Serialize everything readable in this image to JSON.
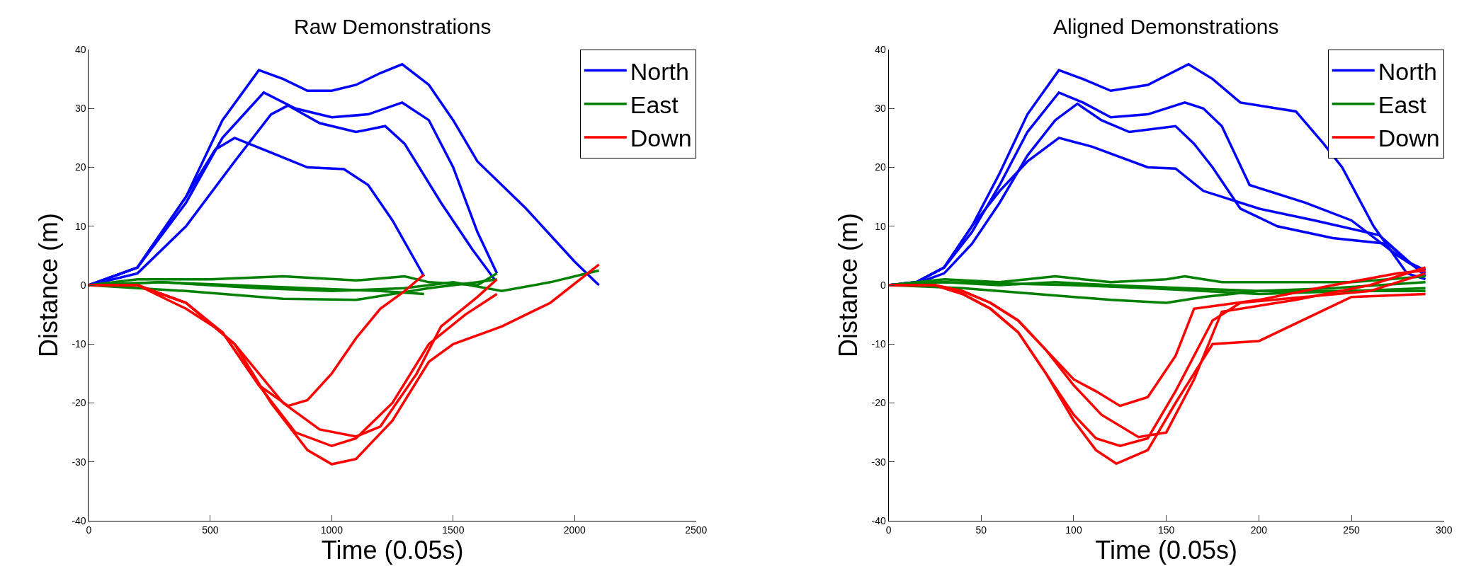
{
  "chart_data": [
    {
      "type": "line",
      "title": "Raw Demonstrations",
      "xlabel": "Time (0.05s)",
      "ylabel": "Distance (m)",
      "xlim": [
        0,
        2500
      ],
      "ylim": [
        -40,
        40
      ],
      "xticks": [
        0,
        500,
        1000,
        1500,
        2000,
        2500
      ],
      "yticks": [
        -40,
        -30,
        -20,
        -10,
        0,
        10,
        20,
        30,
        40
      ],
      "grid": false,
      "legend": "top right",
      "series": [
        {
          "name": "North",
          "color": "#0000ff",
          "x": [
            0,
            200,
            400,
            550,
            700,
            800,
            900,
            1000,
            1100,
            1200,
            1290,
            1400,
            1500,
            1600,
            1800,
            2000,
            2100
          ],
          "values": [
            0,
            3,
            15,
            28,
            36.5,
            35,
            33,
            33,
            34,
            36,
            37.5,
            34,
            28,
            21,
            13,
            4,
            0
          ]
        },
        {
          "color": "#0000ff",
          "x": [
            0,
            200,
            400,
            550,
            720,
            850,
            1000,
            1150,
            1290,
            1400,
            1500,
            1600,
            1680
          ],
          "values": [
            0,
            3,
            14,
            25,
            32.7,
            30,
            28.5,
            29,
            31,
            28,
            20,
            9,
            2
          ]
        },
        {
          "color": "#0000ff",
          "x": [
            0,
            200,
            400,
            600,
            750,
            820,
            950,
            1100,
            1220,
            1300,
            1450,
            1580,
            1670
          ],
          "values": [
            0,
            2,
            10,
            21,
            29,
            30.5,
            27.5,
            26,
            27,
            24,
            14,
            6,
            1
          ]
        },
        {
          "color": "#0000ff",
          "x": [
            0,
            200,
            400,
            520,
            600,
            750,
            900,
            1050,
            1150,
            1250,
            1380
          ],
          "values": [
            0,
            3,
            15,
            23,
            25,
            22.5,
            20,
            19.7,
            17,
            11,
            1.5
          ]
        },
        {
          "name": "East",
          "color": "#008000",
          "x": [
            0,
            200,
            500,
            800,
            1100,
            1300,
            1400,
            1600,
            1680
          ],
          "values": [
            0,
            1,
            1,
            1.5,
            0.8,
            1.5,
            0.5,
            0,
            2
          ]
        },
        {
          "color": "#008000",
          "x": [
            0,
            300,
            600,
            900,
            1200,
            1380
          ],
          "values": [
            0,
            0.5,
            0,
            -0.5,
            -1,
            -1.5
          ]
        },
        {
          "color": "#008000",
          "x": [
            0,
            400,
            800,
            1100,
            1400,
            1600,
            1680
          ],
          "values": [
            0,
            -1,
            -2.3,
            -2.5,
            -0.5,
            0.5,
            1
          ]
        },
        {
          "color": "#008000",
          "x": [
            0,
            300,
            700,
            1000,
            1300,
            1500,
            1700,
            1900,
            2100
          ],
          "values": [
            0,
            0.5,
            -0.5,
            -1,
            -0.5,
            0.5,
            -1,
            0.5,
            2.5
          ]
        },
        {
          "name": "Down",
          "color": "#ff0000",
          "x": [
            0,
            200,
            400,
            550,
            700,
            820,
            900,
            1000,
            1100,
            1200,
            1300,
            1380
          ],
          "values": [
            0,
            0,
            -3,
            -8,
            -17,
            -20.5,
            -19.5,
            -15,
            -9,
            -4,
            -1,
            1.8
          ]
        },
        {
          "color": "#ff0000",
          "x": [
            0,
            200,
            400,
            600,
            800,
            950,
            1100,
            1200,
            1350,
            1450,
            1600,
            1680
          ],
          "values": [
            0,
            0,
            -3,
            -10,
            -20,
            -24.5,
            -25.7,
            -24,
            -15,
            -7,
            -2,
            1
          ]
        },
        {
          "color": "#ff0000",
          "x": [
            0,
            200,
            400,
            550,
            700,
            850,
            1000,
            1100,
            1250,
            1400,
            1550,
            1680
          ],
          "values": [
            0,
            0,
            -4,
            -8,
            -17,
            -25,
            -27.3,
            -26,
            -20,
            -10,
            -5,
            -1.5
          ]
        },
        {
          "color": "#ff0000",
          "x": [
            0,
            200,
            400,
            600,
            750,
            900,
            1000,
            1100,
            1250,
            1400,
            1500,
            1700,
            1900,
            2100
          ],
          "values": [
            0,
            0,
            -3,
            -10,
            -20,
            -28,
            -30.4,
            -29.5,
            -23,
            -13,
            -10,
            -7,
            -3,
            3.5
          ]
        }
      ]
    },
    {
      "type": "line",
      "title": "Aligned Demonstrations",
      "xlabel": "Time (0.05s)",
      "ylabel": "Distance (m)",
      "xlim": [
        0,
        300
      ],
      "ylim": [
        -40,
        40
      ],
      "xticks": [
        0,
        50,
        100,
        150,
        200,
        250,
        300
      ],
      "yticks": [
        -40,
        -30,
        -20,
        -10,
        0,
        10,
        20,
        30,
        40
      ],
      "grid": false,
      "legend": "top right",
      "series": [
        {
          "name": "North",
          "color": "#0000ff",
          "x": [
            0,
            15,
            30,
            45,
            60,
            75,
            92,
            105,
            120,
            140,
            162,
            175,
            190,
            220,
            235,
            245,
            262,
            280,
            290
          ],
          "values": [
            0,
            0.5,
            3,
            10,
            19,
            29,
            36.5,
            35,
            33,
            34,
            37.5,
            35,
            31,
            29.5,
            24,
            20,
            10,
            2,
            1
          ]
        },
        {
          "color": "#0000ff",
          "x": [
            0,
            15,
            30,
            45,
            60,
            75,
            92,
            105,
            120,
            140,
            160,
            170,
            180,
            195,
            225,
            250,
            275,
            290
          ],
          "values": [
            0,
            0.5,
            3,
            9,
            17,
            26,
            32.7,
            31,
            28.5,
            29,
            31,
            30,
            27,
            17,
            14,
            11,
            5,
            2
          ]
        },
        {
          "color": "#0000ff",
          "x": [
            0,
            15,
            30,
            45,
            60,
            75,
            90,
            102,
            115,
            130,
            155,
            165,
            175,
            190,
            210,
            240,
            270,
            280,
            290
          ],
          "values": [
            0,
            0.3,
            2,
            7,
            14,
            22,
            28,
            30.8,
            28,
            26,
            27,
            24,
            20,
            13,
            10,
            8,
            7,
            4,
            2.5
          ]
        },
        {
          "color": "#0000ff",
          "x": [
            0,
            15,
            30,
            45,
            60,
            75,
            92,
            110,
            140,
            155,
            170,
            200,
            230,
            265,
            290
          ],
          "values": [
            0,
            0.5,
            3,
            10,
            16,
            21,
            25,
            23.5,
            20,
            19.8,
            16,
            13,
            11,
            8.5,
            1.5
          ]
        },
        {
          "name": "East",
          "color": "#008000",
          "x": [
            0,
            30,
            60,
            90,
            120,
            150,
            160,
            180,
            210,
            250,
            270,
            290
          ],
          "values": [
            0,
            1,
            0.5,
            1.5,
            0.5,
            1,
            1.5,
            0.5,
            0.5,
            0.5,
            1,
            1.5
          ]
        },
        {
          "color": "#008000",
          "x": [
            0,
            30,
            60,
            90,
            120,
            160,
            200,
            240,
            290
          ],
          "values": [
            0,
            0.5,
            0,
            0.5,
            0,
            -0.5,
            -1,
            -0.5,
            0.5
          ]
        },
        {
          "color": "#008000",
          "x": [
            0,
            40,
            80,
            120,
            150,
            170,
            200,
            240,
            290
          ],
          "values": [
            0,
            -0.5,
            -1.5,
            -2.5,
            -3,
            -2,
            -1,
            -1,
            -1
          ]
        },
        {
          "color": "#008000",
          "x": [
            0,
            30,
            60,
            100,
            140,
            170,
            200,
            250,
            290
          ],
          "values": [
            0,
            0.5,
            0.3,
            0,
            -0.5,
            -1,
            -1.5,
            -1,
            -0.5
          ]
        },
        {
          "name": "Down",
          "color": "#ff0000",
          "x": [
            0,
            25,
            40,
            55,
            70,
            85,
            100,
            112,
            125,
            140,
            155,
            165,
            200,
            240,
            275,
            290
          ],
          "values": [
            0,
            0,
            -1,
            -3,
            -6,
            -11,
            -16,
            -18,
            -20.5,
            -19,
            -12,
            -4,
            -2.5,
            0,
            2,
            2.5
          ]
        },
        {
          "color": "#ff0000",
          "x": [
            0,
            25,
            40,
            55,
            70,
            85,
            100,
            115,
            135,
            150,
            165,
            180,
            220,
            260,
            290
          ],
          "values": [
            0,
            0,
            -1,
            -3,
            -6,
            -11,
            -17,
            -22,
            -25.8,
            -25,
            -16,
            -4.5,
            -2.5,
            0,
            3
          ]
        },
        {
          "color": "#ff0000",
          "x": [
            0,
            25,
            40,
            55,
            70,
            85,
            100,
            112,
            125,
            140,
            155,
            175,
            190,
            260,
            290
          ],
          "values": [
            0,
            0,
            -1.5,
            -4,
            -8,
            -15,
            -22,
            -26,
            -27.3,
            -26,
            -18,
            -6,
            -3,
            -1,
            2
          ]
        },
        {
          "color": "#ff0000",
          "x": [
            0,
            25,
            40,
            55,
            70,
            85,
            100,
            112,
            123,
            140,
            155,
            175,
            200,
            230,
            250,
            290
          ],
          "values": [
            0,
            0,
            -1.5,
            -4,
            -8,
            -15,
            -23,
            -28,
            -30.3,
            -28,
            -20,
            -10,
            -9.5,
            -5,
            -2,
            -1.5
          ]
        }
      ]
    }
  ]
}
